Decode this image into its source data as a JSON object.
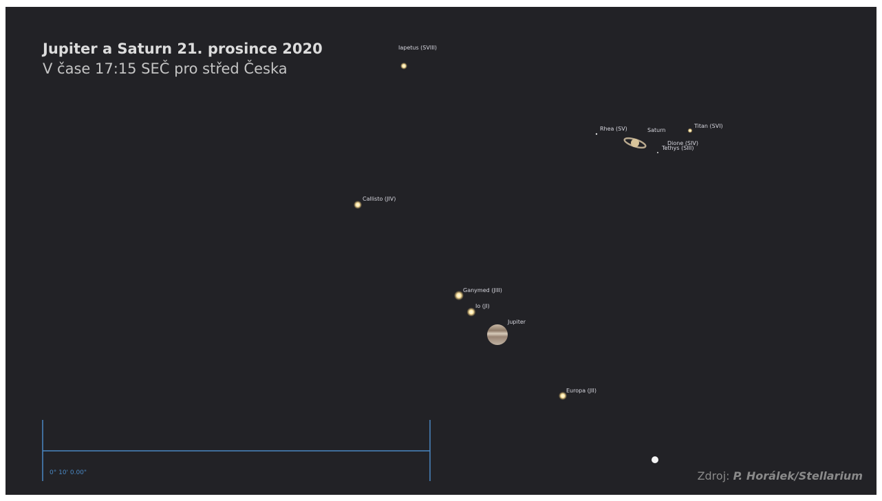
{
  "header": {
    "title": "Jupiter a Saturn 21. prosince 2020",
    "subtitle": "V čase 17:15 SEČ pro střed Česka"
  },
  "objects": [
    {
      "label": "Iapetus (SVIII)"
    },
    {
      "label": "Rhea (SV)"
    },
    {
      "label": "Saturn"
    },
    {
      "label": "Titan (SVI)"
    },
    {
      "label": "Dione (SIV)"
    },
    {
      "label": "Tethys (SIII)"
    },
    {
      "label": "Callisto (JIV)"
    },
    {
      "label": "Ganymed (JIII)"
    },
    {
      "label": "Io (JI)"
    },
    {
      "label": "Jupiter"
    },
    {
      "label": "Europa (JII)"
    }
  ],
  "scale_bar": {
    "label": "0° 10' 0.00\""
  },
  "credit": {
    "prefix": "Zdroj:",
    "author": "P. Horálek/Stellarium"
  }
}
